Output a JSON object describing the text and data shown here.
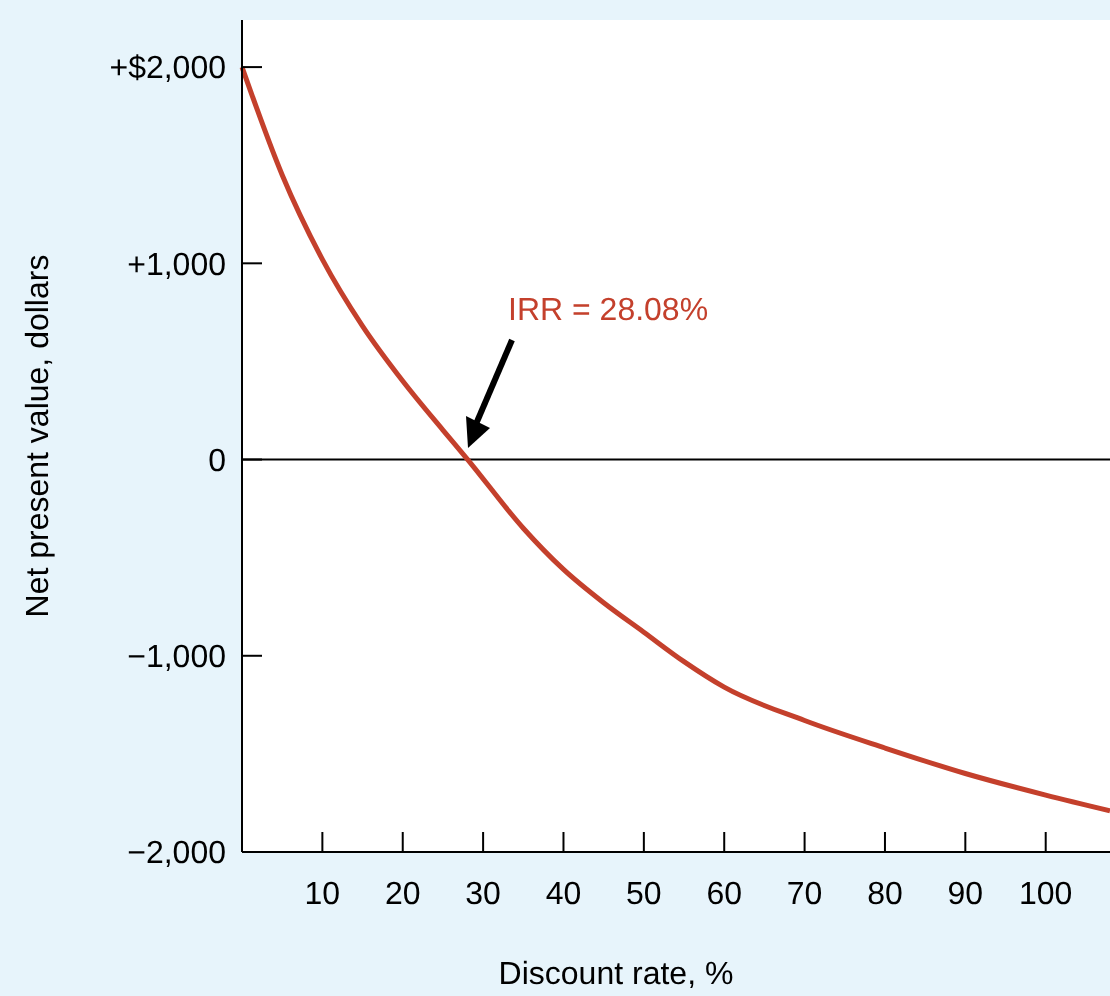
{
  "chart_data": {
    "type": "line",
    "xlabel": "Discount rate, %",
    "ylabel": "Net present value, dollars",
    "x": [
      0,
      5,
      10,
      15,
      20,
      25,
      28.08,
      35,
      40,
      45,
      50,
      55,
      60,
      70,
      80,
      90,
      100,
      108
    ],
    "series": [
      {
        "color": "#c4402c",
        "values": [
          2000,
          1450,
          1020,
          680,
          400,
          150,
          0,
          -350,
          -560,
          -730,
          -880,
          -1030,
          -1160,
          -1330,
          -1470,
          -1600,
          -1710,
          -1790
        ]
      }
    ],
    "xlim": [
      0,
      108
    ],
    "ylim": [
      -2000,
      2240
    ],
    "xticks": [
      10,
      20,
      30,
      40,
      50,
      60,
      70,
      80,
      90,
      100
    ],
    "yticks": [
      {
        "value": 2000,
        "label": "+$2,000"
      },
      {
        "value": 1000,
        "label": "+1,000"
      },
      {
        "value": 0,
        "label": "0"
      },
      {
        "value": -1000,
        "label": "−1,000"
      },
      {
        "value": -2000,
        "label": "−2,000"
      }
    ],
    "ref_lines": [
      {
        "axis": "y",
        "value": 0,
        "color": "#000000"
      }
    ],
    "annotations": [
      "IRR = 28.08%"
    ],
    "grid": false,
    "marker": "none",
    "line_style": "solid"
  }
}
